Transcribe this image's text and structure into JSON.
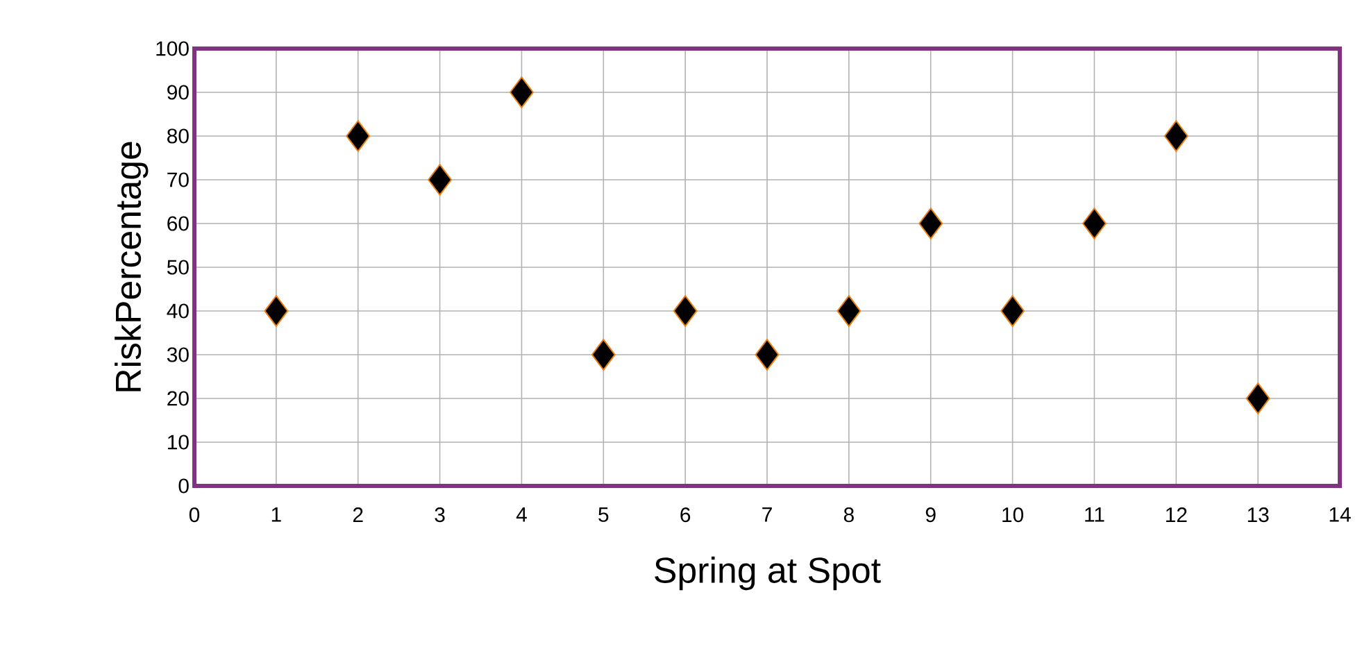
{
  "chart_data": {
    "type": "scatter",
    "xlabel": "Spring at Spot",
    "ylabel": "RiskPercentage",
    "x": [
      1,
      2,
      3,
      4,
      5,
      6,
      7,
      8,
      9,
      10,
      11,
      12,
      13
    ],
    "series": [
      {
        "color": "#000000",
        "values": [
          40,
          80,
          70,
          90,
          30,
          40,
          30,
          40,
          60,
          40,
          60,
          80,
          20
        ]
      }
    ],
    "xlim": [
      0,
      14
    ],
    "ylim": [
      0,
      100
    ],
    "xticks": [
      0,
      1,
      2,
      3,
      4,
      5,
      6,
      7,
      8,
      9,
      10,
      11,
      12,
      13,
      14
    ],
    "yticks": [
      0,
      10,
      20,
      30,
      40,
      50,
      60,
      70,
      80,
      90,
      100
    ],
    "grid": true,
    "marker": "diamond"
  }
}
